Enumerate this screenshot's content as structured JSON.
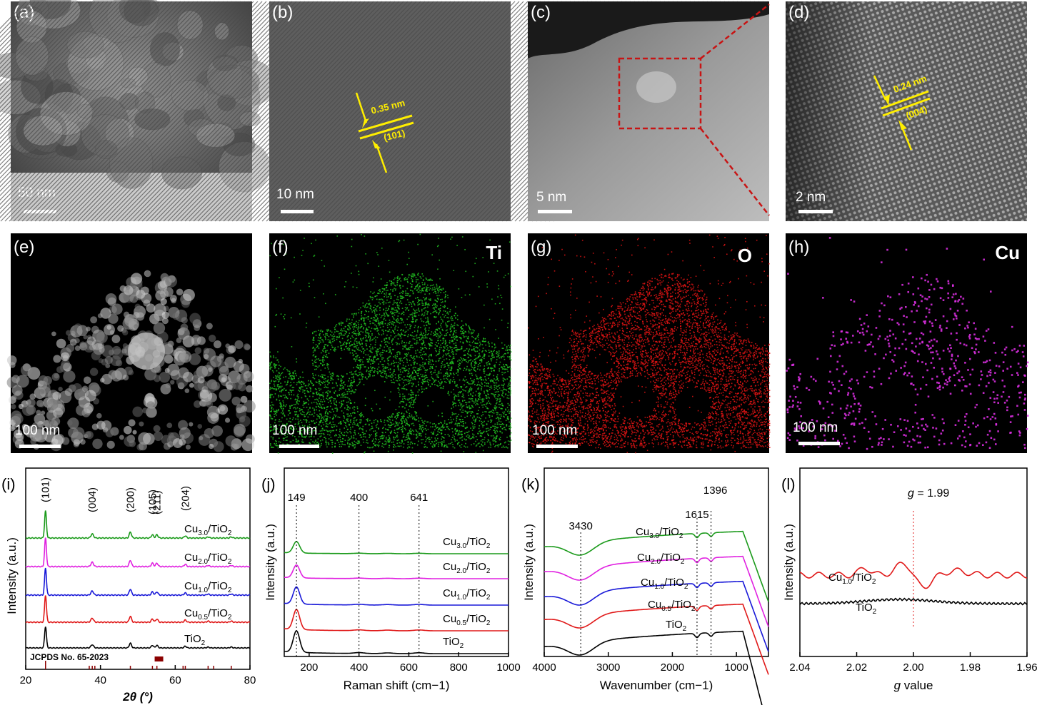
{
  "images": [
    {
      "id": "a",
      "label": "(a)",
      "scale": "50 nm"
    },
    {
      "id": "b",
      "label": "(b)",
      "scale": "10 nm",
      "spacing": "0.35 nm",
      "plane": "(101)"
    },
    {
      "id": "c",
      "label": "(c)",
      "scale": "5 nm"
    },
    {
      "id": "d",
      "label": "(d)",
      "scale": "2 nm",
      "spacing": "0.24 nm",
      "plane": "(004)"
    },
    {
      "id": "e",
      "label": "(e)",
      "scale": "100 nm"
    },
    {
      "id": "f",
      "label": "(f)",
      "scale": "100 nm",
      "element": "Ti",
      "color": "#22c422"
    },
    {
      "id": "g",
      "label": "(g)",
      "scale": "100 nm",
      "element": "O",
      "color": "#e41414"
    },
    {
      "id": "h",
      "label": "(h)",
      "scale": "100 nm",
      "element": "Cu",
      "color": "#e030e8"
    }
  ],
  "chart_data": [
    {
      "id": "i",
      "label": "(i)",
      "type": "line",
      "xlabel": "2θ (°)",
      "ylabel": "Intensity (a.u.)",
      "xlim": [
        20,
        80
      ],
      "xticks": [
        20,
        40,
        60,
        80
      ],
      "peaks": [
        {
          "pos": 25.3,
          "label": "(101)"
        },
        {
          "pos": 37.8,
          "label": "(004)"
        },
        {
          "pos": 48.0,
          "label": "(200)"
        },
        {
          "pos": 53.9,
          "label": "(105)"
        },
        {
          "pos": 55.1,
          "label": "(211)"
        },
        {
          "pos": 62.7,
          "label": "(204)"
        }
      ],
      "reference": "JCPDS No. 65-2023",
      "series": [
        {
          "name": "Cu3.0/TiO2",
          "sub": "3.0",
          "color": "#1a9a1a"
        },
        {
          "name": "Cu2.0/TiO2",
          "sub": "2.0",
          "color": "#e020e0"
        },
        {
          "name": "Cu1.0/TiO2",
          "sub": "1.0",
          "color": "#1818d8"
        },
        {
          "name": "Cu0.5/TiO2",
          "sub": "0.5",
          "color": "#e01818"
        },
        {
          "name": "TiO2",
          "sub": "",
          "color": "#000000"
        }
      ]
    },
    {
      "id": "j",
      "label": "(j)",
      "type": "line",
      "xlabel": "Raman shift (cm−1)",
      "ylabel": "Intensity (a.u.)",
      "xlim": [
        100,
        1000
      ],
      "xticks": [
        200,
        400,
        600,
        800,
        1000
      ],
      "peaks": [
        149,
        400,
        641
      ],
      "series": [
        {
          "name": "Cu3.0/TiO2",
          "sub": "3.0",
          "color": "#1a9a1a"
        },
        {
          "name": "Cu2.0/TiO2",
          "sub": "2.0",
          "color": "#e020e0"
        },
        {
          "name": "Cu1.0/TiO2",
          "sub": "1.0",
          "color": "#1818d8"
        },
        {
          "name": "Cu0.5/TiO2",
          "sub": "0.5",
          "color": "#e01818"
        },
        {
          "name": "TiO2",
          "sub": "",
          "color": "#000000"
        }
      ]
    },
    {
      "id": "k",
      "label": "(k)",
      "type": "line",
      "xlabel": "Wavenumber (cm−1)",
      "ylabel": "Intensity (a.u.)",
      "xlim": [
        4000,
        500
      ],
      "xticks": [
        4000,
        3000,
        2000,
        1000
      ],
      "peaks": [
        3430,
        1615,
        1396
      ],
      "series": [
        {
          "name": "Cu3.0/TiO2",
          "sub": "3.0",
          "color": "#1a9a1a"
        },
        {
          "name": "Cu2.0/TiO2",
          "sub": "2.0",
          "color": "#e020e0"
        },
        {
          "name": "Cu1.0/TiO2",
          "sub": "1.0",
          "color": "#1818d8"
        },
        {
          "name": "Cu0.5/TiO2",
          "sub": "0.5",
          "color": "#e01818"
        },
        {
          "name": "TiO2",
          "sub": "",
          "color": "#000000"
        }
      ]
    },
    {
      "id": "l",
      "label": "(l)",
      "type": "line",
      "xlabel": "g value",
      "ylabel": "Intensity (a.u.)",
      "xlim": [
        2.04,
        1.96
      ],
      "xticks": [
        2.04,
        2.02,
        2.0,
        1.98,
        1.96
      ],
      "annotation": "g = 1.99",
      "marker": 2.0,
      "series": [
        {
          "name": "Cu1.0/TiO2",
          "sub": "1.0",
          "color": "#e01818"
        },
        {
          "name": "TiO2",
          "sub": "",
          "color": "#000000"
        }
      ]
    }
  ]
}
